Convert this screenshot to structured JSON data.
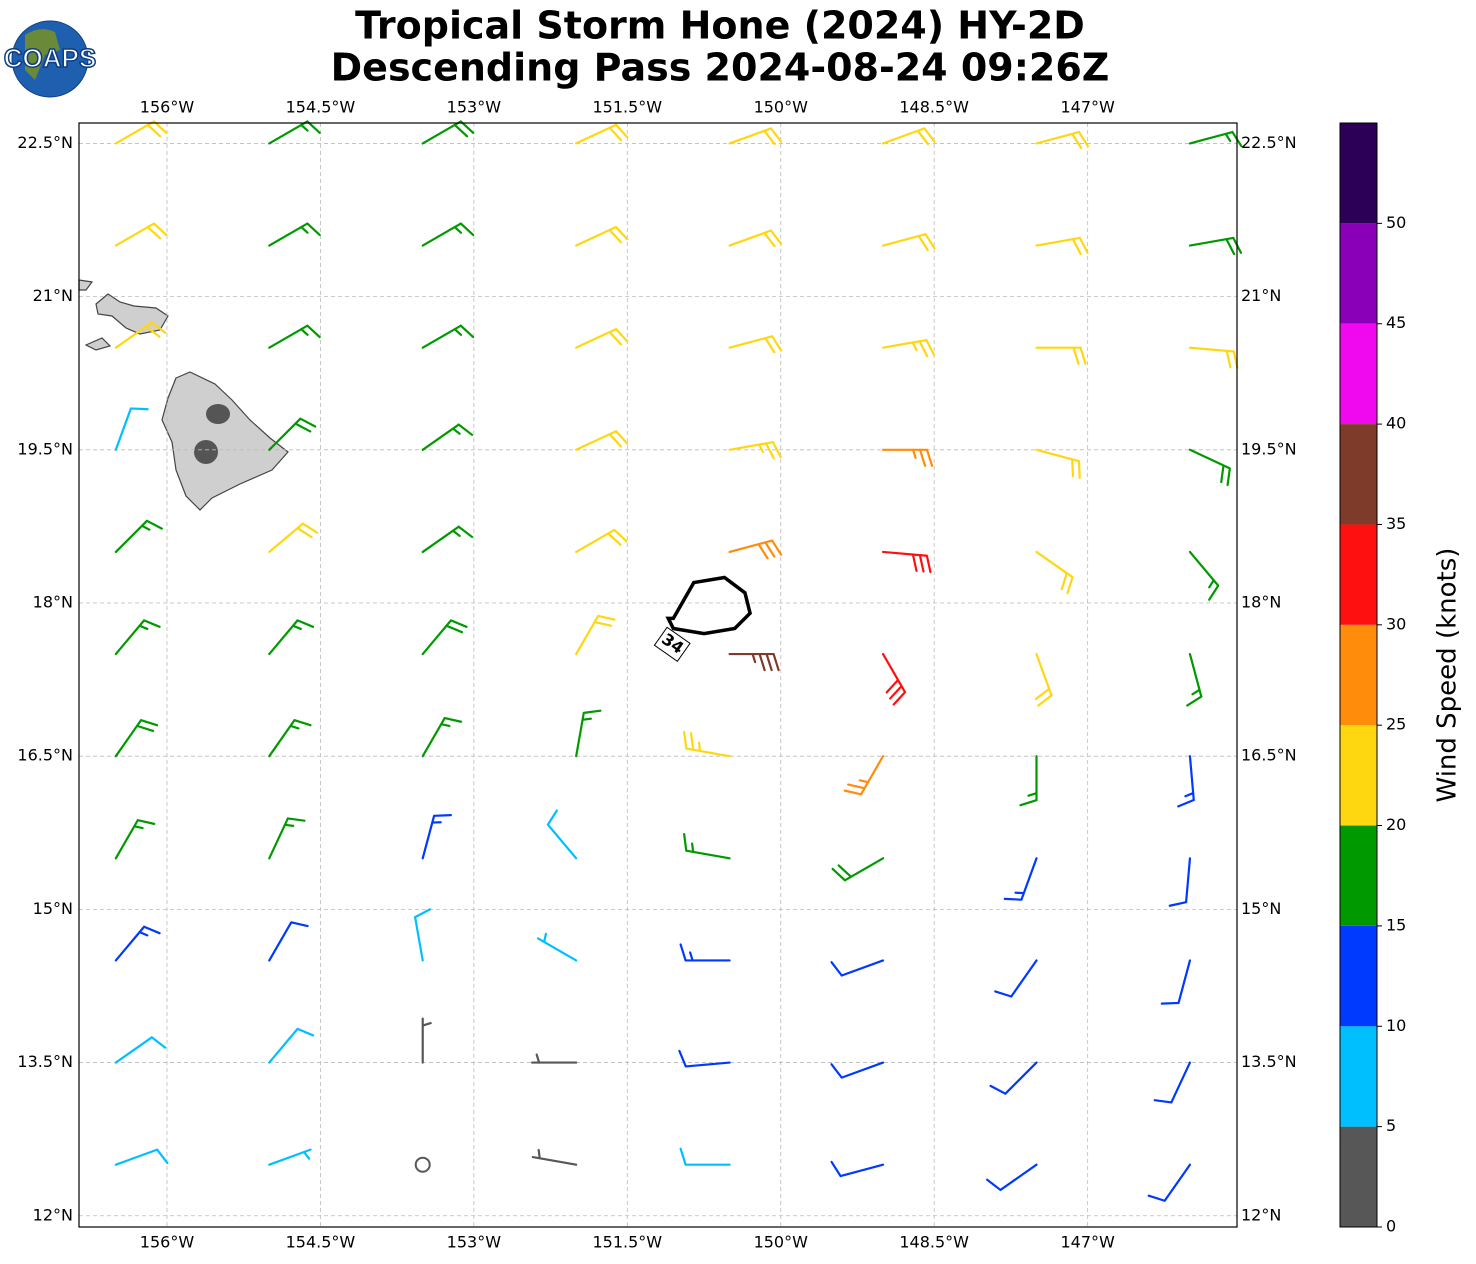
{
  "chart_data": {
    "type": "barbs",
    "logo": "COAPS",
    "title": [
      "Tropical Storm Hone (2024) HY-2D",
      "Descending Pass 2024-08-24 09:26Z"
    ],
    "xlim": [
      -156.86,
      -145.54
    ],
    "ylim": [
      11.89,
      22.7
    ],
    "xticks": [
      {
        "value": -156,
        "label": "156°W"
      },
      {
        "value": -154.5,
        "label": "154.5°W"
      },
      {
        "value": -153,
        "label": "153°W"
      },
      {
        "value": -151.5,
        "label": "151.5°W"
      },
      {
        "value": -150,
        "label": "150°W"
      },
      {
        "value": -148.5,
        "label": "148.5°W"
      },
      {
        "value": -147,
        "label": "147°W"
      }
    ],
    "yticks": [
      {
        "value": 12,
        "label": "12°N"
      },
      {
        "value": 13.5,
        "label": "13.5°N"
      },
      {
        "value": 15,
        "label": "15°N"
      },
      {
        "value": 16.5,
        "label": "16.5°N"
      },
      {
        "value": 18,
        "label": "18°N"
      },
      {
        "value": 19.5,
        "label": "19.5°N"
      },
      {
        "value": 21,
        "label": "21°N"
      },
      {
        "value": 22.5,
        "label": "22.5°N"
      }
    ],
    "grid": true,
    "lons": [
      -156.5,
      -155,
      -153.5,
      -152,
      -150.5,
      -149,
      -147.5,
      -146
    ],
    "lats": [
      22.5,
      21.5,
      20.5,
      19.5,
      18.5,
      17.5,
      16.5,
      15.5,
      14.5,
      13.5,
      12.5
    ],
    "speed": [
      [
        22,
        17,
        18,
        22,
        22,
        22,
        21,
        17
      ],
      [
        22,
        17,
        17,
        22,
        22,
        22,
        22,
        19
      ],
      [
        22,
        17,
        17,
        22,
        22,
        24,
        22,
        22
      ],
      [
        8,
        18,
        17,
        22,
        24,
        27,
        22,
        18
      ],
      [
        17,
        22,
        17,
        22,
        28,
        32,
        22,
        17
      ],
      [
        17,
        17,
        18,
        22,
        35,
        32,
        22,
        17
      ],
      [
        18,
        17,
        17,
        17,
        24,
        27,
        17,
        13
      ],
      [
        17,
        15,
        13,
        8,
        17,
        18,
        13,
        12
      ],
      [
        13,
        12,
        8,
        7,
        13,
        12,
        12,
        12
      ],
      [
        8,
        9,
        4,
        4,
        12,
        12,
        12,
        12
      ],
      [
        9,
        5,
        2,
        3,
        8,
        12,
        12,
        11
      ]
    ],
    "direction": [
      [
        60,
        60,
        60,
        65,
        70,
        70,
        75,
        75
      ],
      [
        60,
        60,
        60,
        65,
        70,
        75,
        80,
        80
      ],
      [
        55,
        60,
        60,
        65,
        75,
        80,
        90,
        95
      ],
      [
        20,
        45,
        55,
        65,
        80,
        90,
        105,
        115
      ],
      [
        45,
        50,
        55,
        60,
        75,
        95,
        125,
        140
      ],
      [
        40,
        40,
        40,
        30,
        90,
        150,
        160,
        165
      ],
      [
        35,
        35,
        30,
        10,
        280,
        210,
        180,
        175
      ],
      [
        30,
        25,
        15,
        320,
        280,
        240,
        200,
        185
      ],
      [
        40,
        30,
        350,
        300,
        270,
        250,
        215,
        195
      ],
      [
        55,
        40,
        0,
        270,
        265,
        250,
        225,
        205
      ],
      [
        70,
        70,
        90,
        280,
        270,
        255,
        235,
        215
      ]
    ],
    "contour": {
      "level": 34,
      "lons": [
        -151.05,
        -150.85,
        -150.55,
        -150.35,
        -150.3,
        -150.45,
        -150.75,
        -151.05,
        -151.1
      ],
      "lats": [
        17.85,
        18.2,
        18.25,
        18.1,
        17.9,
        17.75,
        17.7,
        17.75,
        17.85
      ]
    },
    "colorbar": {
      "label": "Wind Speed (knots)",
      "levels": [
        0,
        5,
        10,
        15,
        20,
        25,
        30,
        35,
        40,
        45,
        50,
        55
      ],
      "colors": [
        "#575757",
        "#00bfff",
        "#0039ff",
        "#009a00",
        "#ffd710",
        "#ff8c0a",
        "#ff1010",
        "#7f3b29",
        "#f008ee",
        "#8a00b8",
        "#2d0057"
      ],
      "ticks": [
        0,
        5,
        10,
        15,
        20,
        25,
        30,
        35,
        40,
        45,
        50
      ]
    }
  }
}
